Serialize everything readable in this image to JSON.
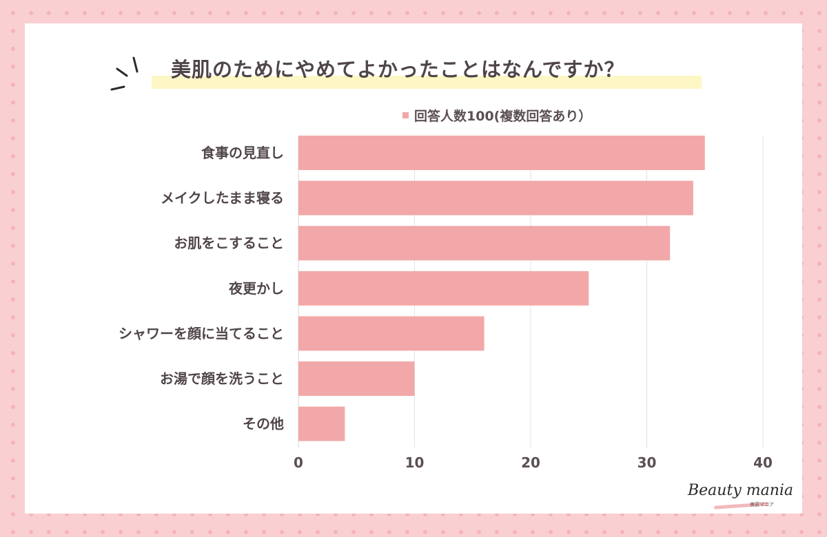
{
  "title": "美肌のためにやめてよかったことはなんですか？",
  "legend": "回答人数100(複数回答あり）",
  "logo": {
    "main": "Beauty mania",
    "sub": "美容マニア"
  },
  "colors": {
    "bar": "#f2a8a8",
    "card": "#ffffff",
    "highlight": "#fdf6c5",
    "text": "#4f4548"
  },
  "chart_data": {
    "type": "bar",
    "orientation": "horizontal",
    "categories": [
      "食事の見直し",
      "メイクしたまま寝る",
      "お肌をこすること",
      "夜更かし",
      "シャワーを顔に当てること",
      "お湯で顔を洗うこと",
      "その他"
    ],
    "series": [
      {
        "name": "回答人数100(複数回答あり）",
        "values": [
          35,
          34,
          32,
          25,
          16,
          10,
          4
        ]
      }
    ],
    "xlim": [
      0,
      40
    ],
    "xticks": [
      0,
      10,
      20,
      30,
      40
    ],
    "grid": "vertical",
    "legend_position": "top"
  }
}
